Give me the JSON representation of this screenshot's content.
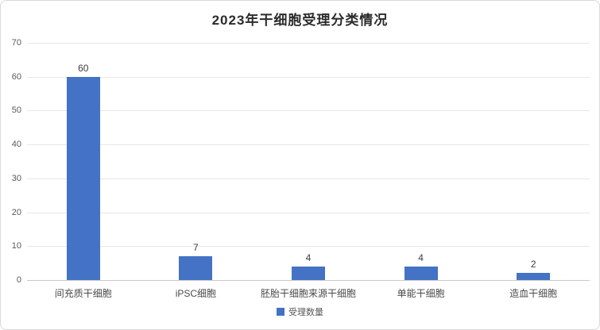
{
  "card": {
    "title": "2023年干细胞受理分类情况"
  },
  "legend": {
    "label": "受理数量"
  },
  "colors": {
    "bar": "#4472c4",
    "gridline": "#e7e7e7",
    "axis_line": "#c9c9c9",
    "title_text": "#2b2b2b",
    "tick_text": "#595959",
    "category_text": "#4a4a4a",
    "value_text": "#3b3b3b"
  },
  "chart_data": {
    "type": "bar",
    "title": "2023年干细胞受理分类情况",
    "categories": [
      "间充质干细胞",
      "iPSC细胞",
      "胚胎干细胞来源干细胞",
      "单能干细胞",
      "造血干细胞"
    ],
    "series": [
      {
        "name": "受理数量",
        "values": [
          60,
          7,
          4,
          4,
          2
        ]
      }
    ],
    "data_labels": [
      "60",
      "7",
      "4",
      "4",
      "2"
    ],
    "xlabel": "",
    "ylabel": "",
    "ylim": [
      0,
      70
    ],
    "yticks": [
      0,
      10,
      20,
      30,
      40,
      50,
      60,
      70
    ],
    "grid": "horizontal",
    "legend_position": "bottom"
  }
}
